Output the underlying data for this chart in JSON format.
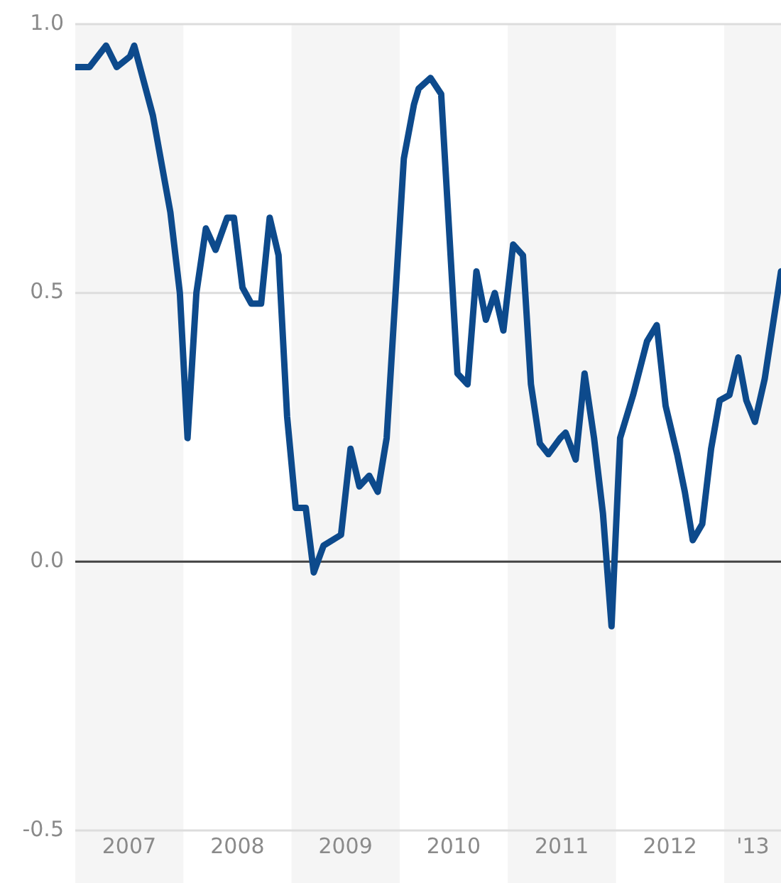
{
  "chart_data": {
    "type": "line",
    "x": [
      "2007-01-01",
      "2007-02-18",
      "2007-04-15",
      "2007-05-21",
      "2007-07-05",
      "2007-07-19",
      "2007-09-20",
      "2007-10-26",
      "2007-11-18",
      "2007-12-20",
      "2008-01-15",
      "2008-02-14",
      "2008-03-17",
      "2008-04-19",
      "2008-05-28",
      "2008-06-20",
      "2008-07-19",
      "2008-08-18",
      "2008-09-20",
      "2008-10-19",
      "2008-11-18",
      "2008-12-17",
      "2009-01-15",
      "2009-02-18",
      "2009-03-17",
      "2009-04-19",
      "2009-06-17",
      "2009-07-19",
      "2009-08-18",
      "2009-09-20",
      "2009-10-19",
      "2009-11-18",
      "2010-01-15",
      "2010-02-18",
      "2010-03-06",
      "2010-04-15",
      "2010-05-21",
      "2010-07-15",
      "2010-08-18",
      "2010-09-17",
      "2010-10-19",
      "2010-11-18",
      "2010-12-17",
      "2011-01-19",
      "2011-02-21",
      "2011-03-20",
      "2011-04-19",
      "2011-05-18",
      "2011-06-27",
      "2011-07-15",
      "2011-08-18",
      "2011-09-17",
      "2011-10-19",
      "2011-11-18",
      "2011-12-17",
      "2012-01-15",
      "2012-02-28",
      "2012-04-15",
      "2012-05-18",
      "2012-06-17",
      "2012-07-26",
      "2012-08-21",
      "2012-09-17",
      "2012-10-19",
      "2012-11-18",
      "2012-12-17",
      "2013-01-19",
      "2013-02-18",
      "2013-03-17",
      "2013-04-15",
      "2013-05-18",
      "2013-07-12"
    ],
    "series": [
      {
        "color": "#0d4a8c",
        "values": [
          0.92,
          0.92,
          0.96,
          0.92,
          0.94,
          0.96,
          0.83,
          0.72,
          0.65,
          0.5,
          0.23,
          0.5,
          0.62,
          0.58,
          0.64,
          0.64,
          0.51,
          0.48,
          0.48,
          0.64,
          0.57,
          0.27,
          0.1,
          0.1,
          -0.02,
          0.03,
          0.05,
          0.21,
          0.14,
          0.16,
          0.13,
          0.23,
          0.75,
          0.85,
          0.88,
          0.9,
          0.87,
          0.35,
          0.33,
          0.54,
          0.45,
          0.5,
          0.43,
          0.59,
          0.57,
          0.33,
          0.22,
          0.2,
          0.23,
          0.24,
          0.19,
          0.35,
          0.23,
          0.09,
          -0.12,
          0.23,
          0.31,
          0.41,
          0.44,
          0.29,
          0.2,
          0.13,
          0.04,
          0.07,
          0.21,
          0.3,
          0.31,
          0.38,
          0.3,
          0.26,
          0.34,
          0.54
        ]
      }
    ],
    "xlim": [
      "2007-01-01",
      "2013-07-12"
    ],
    "xticks": [
      {
        "value": "2007-07-02",
        "label": "2007"
      },
      {
        "value": "2008-07-02",
        "label": "2008"
      },
      {
        "value": "2009-07-02",
        "label": "2009"
      },
      {
        "value": "2010-07-02",
        "label": "2010"
      },
      {
        "value": "2011-07-02",
        "label": "2011"
      },
      {
        "value": "2012-07-02",
        "label": "2012"
      },
      {
        "value": "2013-04-08",
        "label": "'13"
      }
    ],
    "ylim": [
      -0.5,
      1
    ],
    "yticks": [
      {
        "value": -0.5,
        "label": "-0.5"
      },
      {
        "value": 0,
        "label": "0.0"
      },
      0.5,
      {
        "value": 1,
        "label": "1.0"
      }
    ],
    "grid": "y",
    "legend": false,
    "marker": "none",
    "line_style": "solid",
    "ref_lines": [
      {
        "axis": "y",
        "value": 0,
        "label": null,
        "color": "#444444"
      }
    ],
    "bands": [
      {
        "axis": "x",
        "from": "2007-01-01",
        "to": "2008-01-01",
        "label": null,
        "color": "#f5f5f5"
      },
      {
        "axis": "x",
        "from": "2009-01-01",
        "to": "2010-01-01",
        "label": null,
        "color": "#f5f5f5"
      },
      {
        "axis": "x",
        "from": "2011-01-01",
        "to": "2012-01-01",
        "label": null,
        "color": "#f5f5f5"
      },
      {
        "axis": "x",
        "from": "2013-01-01",
        "to": "2013-07-12",
        "label": null,
        "color": "#f5f5f5"
      }
    ]
  }
}
